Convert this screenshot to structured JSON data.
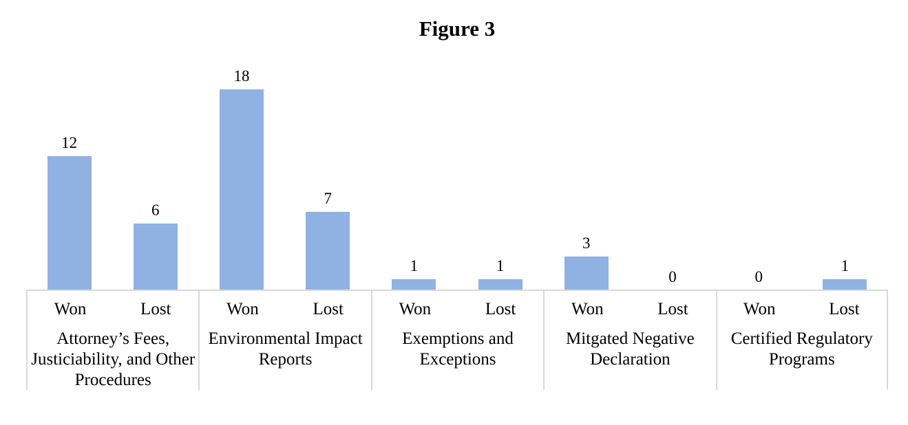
{
  "chart_data": {
    "type": "bar",
    "title": "Figure 3",
    "categories": [
      "Attorney’s Fees, Justiciability, and Other Procedures",
      "Environmental Impact Reports",
      "Exemptions and Exceptions",
      "Mitgated Negative Declaration",
      "Certified Regulatory Programs"
    ],
    "series": [
      {
        "name": "Won",
        "values": [
          12,
          18,
          1,
          3,
          0
        ]
      },
      {
        "name": "Lost",
        "values": [
          6,
          7,
          1,
          0,
          1
        ]
      }
    ],
    "data_labels": [
      [
        "12",
        "6"
      ],
      [
        "18",
        "7"
      ],
      [
        "1",
        "1"
      ],
      [
        "3",
        "0"
      ],
      [
        "0",
        "1"
      ]
    ],
    "ylim": [
      0,
      20
    ],
    "grid": false,
    "legend_position": "none",
    "bar_color": "#8FB2E3",
    "axis_color": "#D9D9D9",
    "text_color": "#000000",
    "background_color": "#FFFFFF"
  }
}
